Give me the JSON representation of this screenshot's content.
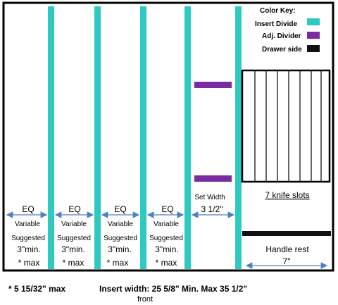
{
  "colors": {
    "insert_divider": "#2ec9c3",
    "adj_divider": "#7b2aa0",
    "drawer_side": "#111111",
    "arrow": "#4f81bd"
  },
  "color_key": {
    "title": "Color Key:",
    "items": [
      {
        "label": "Insert Divide",
        "color": "#2ec9c3"
      },
      {
        "label": "Adj. Divider",
        "color": "#7b2aa0"
      },
      {
        "label": "Drawer side",
        "color": "#111111"
      }
    ]
  },
  "compartments": [
    {
      "top": "EQ",
      "middle": "Variable",
      "suggested": "Suggested",
      "min": "3\"min.",
      "max": "* max"
    },
    {
      "top": "EQ",
      "middle": "Variable",
      "suggested": "Suggested",
      "min": "3\"min.",
      "max": "* max"
    },
    {
      "top": "EQ",
      "middle": "Variable",
      "suggested": "Suggested",
      "min": "3\"min.",
      "max": "* max"
    },
    {
      "top": "EQ",
      "middle": "Variable",
      "suggested": "Suggested",
      "min": "3\"min.",
      "max": "* max"
    }
  ],
  "set_width": {
    "label": "Set Width",
    "value": "3 1/2\""
  },
  "knife_block": {
    "label": "7 knife slots",
    "slot_count": 7
  },
  "handle_rest": {
    "label": "Handle rest",
    "width": "7\""
  },
  "footer": {
    "max_note": "* 5 15/32\" max",
    "insert_width": "Insert width: 25 5/8\" Min. Max 35 1/2\"",
    "front": "front"
  }
}
